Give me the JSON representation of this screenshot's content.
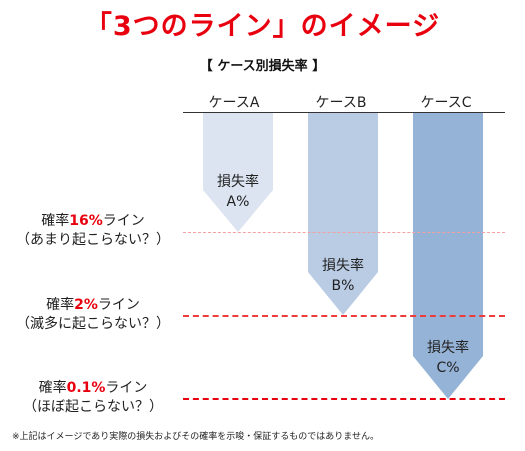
{
  "title": "「3つのライン」のイメージ",
  "subtitle": "【 ケース別損失率 】",
  "cases": [
    {
      "header": "ケースA",
      "label_line1": "損失率",
      "label_line2": "A%"
    },
    {
      "header": "ケースB",
      "label_line1": "損失率",
      "label_line2": "B%"
    },
    {
      "header": "ケースC",
      "label_line1": "損失率",
      "label_line2": "C%"
    }
  ],
  "lines": [
    {
      "prefix": "確率",
      "pct": "16%",
      "suffix": "ライン",
      "note": "（あまり起こらない？）",
      "color": "#f4a0a0",
      "style": "dashed"
    },
    {
      "prefix": "確率",
      "pct": "2%",
      "suffix": "ライン",
      "note": "（滅多に起こらない？）",
      "color": "#ee3b3b",
      "style": "dashed"
    },
    {
      "prefix": "確率",
      "pct": "0.1%",
      "suffix": "ライン",
      "note": "（ほぼ起こらない？）",
      "color": "#e8000f",
      "style": "dashed"
    }
  ],
  "colors": {
    "title": "#e8000f",
    "arrow_a": "#dbe4f0",
    "arrow_b": "#b9cce4",
    "arrow_c": "#95b3d7"
  },
  "footnote": "※上記はイメージであり実際の損失およびその確率を示唆・保証するものではありません。"
}
